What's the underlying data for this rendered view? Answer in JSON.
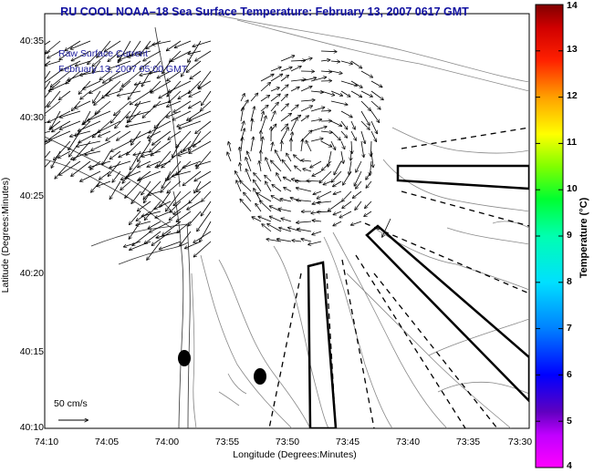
{
  "title": "RU COOL  NOAA–18  Sea Surface Temperature:  February 13, 2007 0617 GMT",
  "legend": {
    "line1": "Raw Surface Current",
    "line2": "February 13, 2007 05:00 GMT"
  },
  "scale_label": "50 cm/s",
  "axes": {
    "xlabel": "Longitude (Degrees:Minutes)",
    "ylabel": "Latitude (Degrees:Minutes)",
    "xticks": [
      "74:10",
      "74:05",
      "74:00",
      "73:55",
      "73:50",
      "73:45",
      "73:40",
      "73:35",
      "73:30"
    ],
    "yticks": [
      "40:35",
      "40:30",
      "40:25",
      "40:20",
      "40:15",
      "40:10"
    ]
  },
  "colorbar": {
    "label": "Temperature (°C)",
    "ticks": [
      "14",
      "13",
      "12",
      "11",
      "10",
      "9",
      "8",
      "7",
      "6",
      "5",
      "4"
    ],
    "range": [
      4,
      14
    ],
    "colors": [
      "#ff00ff",
      "#8000c0",
      "#0000ff",
      "#0060ff",
      "#00c0ff",
      "#00ffcc",
      "#00ff40",
      "#80ff00",
      "#ffff00",
      "#ffb000",
      "#ff6000",
      "#ff0000",
      "#c00000",
      "#800000"
    ]
  }
}
